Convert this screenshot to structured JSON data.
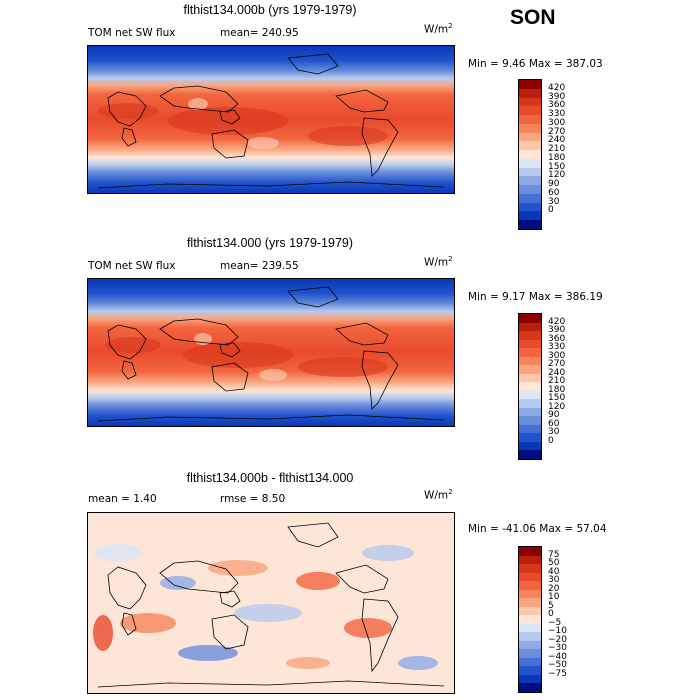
{
  "season": "SON",
  "panels": [
    {
      "id": "top",
      "title": "flthist134.000b (yrs 1979-1979)",
      "field": "TOM net SW flux",
      "stat": "mean=  240.95",
      "units": "W/m",
      "units_exp": "2",
      "minmax": "Min =    9.46 Max = 387.03",
      "colorbar": {
        "labels": [
          "420",
          "390",
          "360",
          "330",
          "300",
          "270",
          "240",
          "210",
          "180",
          "150",
          "120",
          "90",
          "60",
          "30",
          "0"
        ],
        "colors": [
          "#8c0000",
          "#b81f0f",
          "#d8361c",
          "#e84b2c",
          "#f2653f",
          "#f7855c",
          "#faa57f",
          "#fcc8a9",
          "#fde6d8",
          "#dbe5f5",
          "#b6caee",
          "#8fabe6",
          "#6a8ddc",
          "#4470d3",
          "#1f54cc",
          "#0a37b8",
          "#000d7f"
        ]
      }
    },
    {
      "id": "middle",
      "title": "flthist134.000 (yrs 1979-1979)",
      "field": "TOM net SW flux",
      "stat": "mean=  239.55",
      "units": "W/m",
      "units_exp": "2",
      "minmax": "Min =    9.17 Max = 386.19",
      "colorbar": {
        "labels": [
          "420",
          "390",
          "360",
          "330",
          "300",
          "270",
          "240",
          "210",
          "180",
          "150",
          "120",
          "90",
          "60",
          "30",
          "0"
        ],
        "colors": [
          "#8c0000",
          "#b81f0f",
          "#d8361c",
          "#e84b2c",
          "#f2653f",
          "#f7855c",
          "#faa57f",
          "#fcc8a9",
          "#fde6d8",
          "#dbe5f5",
          "#b6caee",
          "#8fabe6",
          "#6a8ddc",
          "#4470d3",
          "#1f54cc",
          "#0a37b8",
          "#000d7f"
        ]
      }
    },
    {
      "id": "diff",
      "title": "flthist134.000b - flthist134.000",
      "field": "mean =    1.40",
      "stat": "rmse =    8.50",
      "units": "W/m",
      "units_exp": "2",
      "minmax": "Min = -41.06 Max =  57.04",
      "colorbar": {
        "labels": [
          "75",
          "50",
          "40",
          "30",
          "20",
          "10",
          "5",
          "0",
          "−5",
          "−10",
          "−20",
          "−30",
          "−40",
          "−50",
          "−75"
        ],
        "colors": [
          "#8c0000",
          "#b81f0f",
          "#d8361c",
          "#e84b2c",
          "#f2653f",
          "#f7855c",
          "#faa57f",
          "#fcc8a9",
          "#fde6d8",
          "#dbe5f5",
          "#b6caee",
          "#8fabe6",
          "#6a8ddc",
          "#4470d3",
          "#1f54cc",
          "#0a37b8",
          "#000d7f"
        ]
      }
    }
  ]
}
